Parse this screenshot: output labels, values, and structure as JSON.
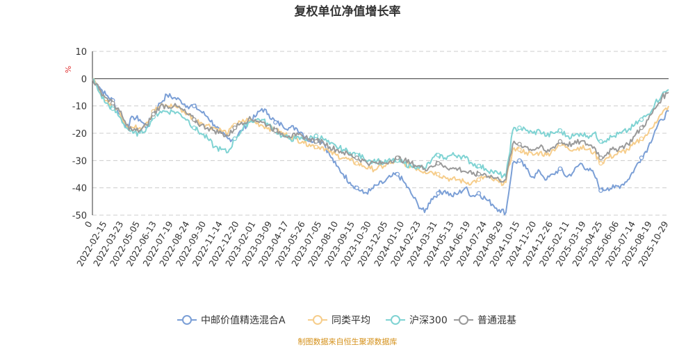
{
  "chart_data": {
    "type": "line",
    "title": "复权单位净值增长率",
    "unit": "%",
    "ylim": [
      -50,
      10
    ],
    "yticks": [
      10,
      0,
      -10,
      -20,
      -30,
      -40,
      -50
    ],
    "x_origin_label": "0",
    "x_ticks": [
      "2022-02-15",
      "2022-03-23",
      "2022-05-05",
      "2022-06-13",
      "2022-07-19",
      "2022-08-24",
      "2022-09-30",
      "2022-11-14",
      "2022-12-20",
      "2023-02-01",
      "2023-03-09",
      "2023-04-17",
      "2023-05-26",
      "2023-07-05",
      "2023-08-10",
      "2023-09-15",
      "2023-10-30",
      "2023-12-05",
      "2024-01-10",
      "2024-02-23",
      "2024-03-31",
      "2024-05-13",
      "2024-06-19",
      "2024-07-24",
      "2024-08-29",
      "2024-10-15",
      "2024-11-20",
      "2024-12-26",
      "2025-02-11",
      "2025-03-19",
      "2025-04-25",
      "2025-06-06",
      "2025-07-14",
      "2025-08-19",
      "2025-10-29"
    ],
    "x": [
      0,
      2,
      4,
      6,
      8,
      10,
      12,
      14,
      16,
      18,
      20,
      22,
      24,
      26,
      28,
      30,
      32,
      34,
      36,
      38,
      40,
      42,
      44,
      46,
      48,
      50,
      52,
      54,
      56,
      58,
      60,
      62,
      64,
      66,
      68,
      70,
      72,
      74,
      76,
      78,
      80,
      82,
      84,
      86,
      88,
      90,
      92,
      94,
      96,
      98,
      100,
      102,
      104,
      106,
      108,
      110,
      112,
      114,
      116,
      118,
      120,
      122,
      124,
      126,
      128,
      130,
      132,
      134,
      136,
      138,
      140,
      142,
      144,
      146,
      148,
      150,
      152,
      154,
      156,
      158,
      160,
      162,
      164,
      166,
      168,
      170
    ],
    "series": [
      {
        "name": "中邮价值精选混合A",
        "color": "#7b9fd6",
        "values": [
          0,
          -3,
          -6,
          -8,
          -13,
          -18,
          -14,
          -15,
          -18,
          -12,
          -9,
          -6,
          -7,
          -8,
          -10,
          -10,
          -12,
          -14,
          -17,
          -20,
          -22,
          -22,
          -19,
          -16,
          -14,
          -11,
          -13,
          -16,
          -17,
          -18,
          -18,
          -20,
          -23,
          -22,
          -23,
          -28,
          -32,
          -35,
          -38,
          -40,
          -42,
          -41,
          -39,
          -38,
          -36,
          -35,
          -38,
          -42,
          -46,
          -49,
          -44,
          -42,
          -41,
          -43,
          -42,
          -40,
          -43,
          -42,
          -44,
          -46,
          -48,
          -49,
          -31,
          -30,
          -33,
          -36,
          -34,
          -37,
          -35,
          -33,
          -36,
          -34,
          -31,
          -33,
          -35,
          -41,
          -40,
          -40,
          -39,
          -37,
          -33,
          -29,
          -25,
          -19,
          -15,
          -12
        ]
      },
      {
        "name": "同类平均",
        "color": "#f6cd8b",
        "values": [
          0,
          -4,
          -8,
          -10,
          -12,
          -17,
          -18,
          -18,
          -16,
          -12,
          -10,
          -10,
          -10,
          -11,
          -13,
          -15,
          -16,
          -17,
          -18,
          -19,
          -20,
          -17,
          -16,
          -15,
          -16,
          -17,
          -18,
          -19,
          -20,
          -21,
          -22,
          -23,
          -24,
          -25,
          -25,
          -27,
          -28,
          -29,
          -30,
          -31,
          -32,
          -33,
          -33,
          -32,
          -31,
          -30,
          -31,
          -32,
          -33,
          -34,
          -34,
          -35,
          -36,
          -37,
          -37,
          -38,
          -38,
          -37,
          -36,
          -37,
          -38,
          -38,
          -26,
          -26,
          -27,
          -28,
          -27,
          -28,
          -26,
          -24,
          -25,
          -26,
          -25,
          -26,
          -27,
          -31,
          -29,
          -28,
          -27,
          -26,
          -24,
          -22,
          -20,
          -16,
          -13,
          -10
        ]
      },
      {
        "name": "沪深300",
        "color": "#7fd3d3",
        "values": [
          0,
          -5,
          -9,
          -11,
          -14,
          -18,
          -20,
          -20,
          -18,
          -14,
          -12,
          -12,
          -12,
          -13,
          -15,
          -18,
          -20,
          -22,
          -25,
          -26,
          -27,
          -22,
          -19,
          -16,
          -15,
          -15,
          -17,
          -19,
          -21,
          -22,
          -22,
          -22,
          -22,
          -21,
          -22,
          -24,
          -25,
          -26,
          -27,
          -28,
          -29,
          -30,
          -30,
          -31,
          -30,
          -30,
          -31,
          -32,
          -32,
          -33,
          -30,
          -28,
          -29,
          -28,
          -28,
          -29,
          -31,
          -32,
          -33,
          -34,
          -35,
          -36,
          -19,
          -18,
          -19,
          -20,
          -19,
          -21,
          -20,
          -19,
          -21,
          -21,
          -20,
          -21,
          -20,
          -23,
          -22,
          -21,
          -20,
          -19,
          -17,
          -15,
          -13,
          -9,
          -6,
          -4
        ]
      },
      {
        "name": "普通混基",
        "color": "#9a9a9a",
        "values": [
          0,
          -4,
          -7,
          -9,
          -12,
          -17,
          -19,
          -19,
          -17,
          -13,
          -10,
          -10,
          -10,
          -11,
          -13,
          -15,
          -17,
          -18,
          -19,
          -20,
          -21,
          -18,
          -16,
          -15,
          -15,
          -16,
          -17,
          -19,
          -20,
          -21,
          -21,
          -21,
          -22,
          -23,
          -23,
          -25,
          -26,
          -27,
          -28,
          -29,
          -30,
          -31,
          -31,
          -31,
          -30,
          -29,
          -30,
          -31,
          -32,
          -33,
          -32,
          -31,
          -32,
          -33,
          -33,
          -34,
          -35,
          -35,
          -35,
          -36,
          -37,
          -37,
          -24,
          -24,
          -25,
          -26,
          -25,
          -27,
          -25,
          -23,
          -24,
          -24,
          -23,
          -24,
          -25,
          -29,
          -27,
          -26,
          -25,
          -24,
          -21,
          -18,
          -15,
          -11,
          -7,
          -5
        ]
      }
    ]
  },
  "source": "制图数据来自恒生聚源数据库"
}
